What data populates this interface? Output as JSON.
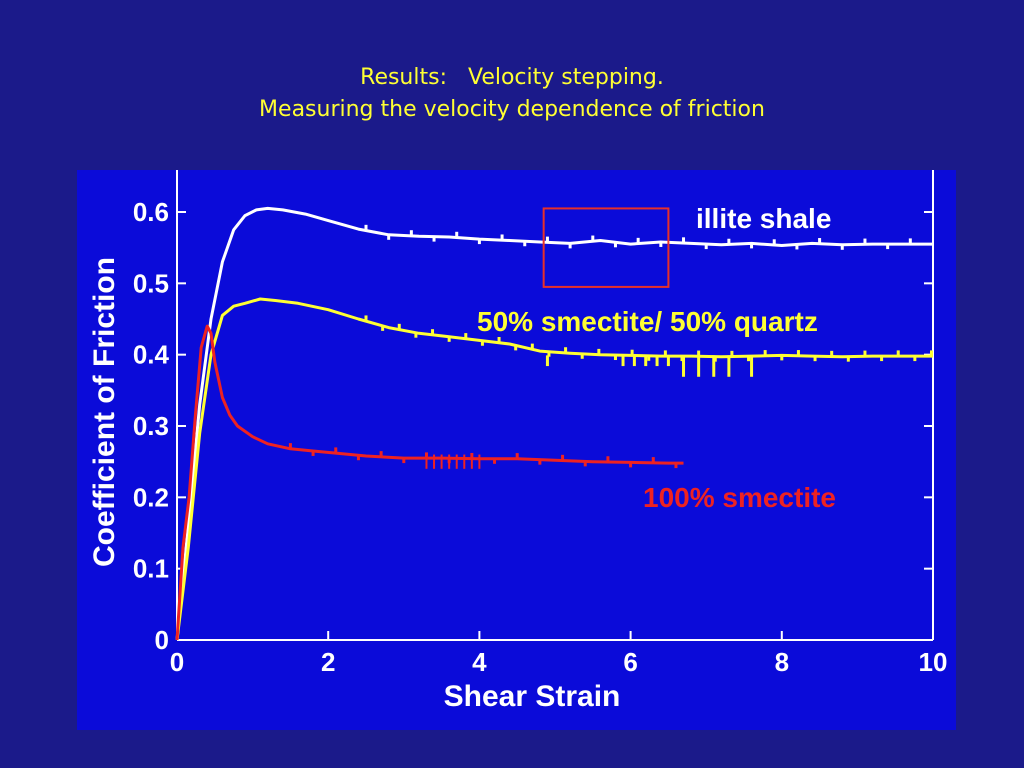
{
  "slide": {
    "title_line1": "Results:   Velocity stepping.",
    "title_line2": "Measuring the velocity dependence of friction"
  },
  "colors": {
    "background": "#1b1a8a",
    "plot_background": "#0b0bd9",
    "title": "#ffff33",
    "axes": "#ffffff",
    "highlight_box": "#e8302a"
  },
  "chart_data": {
    "type": "line",
    "title": "",
    "xlabel": "Shear Strain",
    "ylabel": "Coefficient of Friction",
    "xlim": [
      0,
      10
    ],
    "ylim": [
      0,
      0.65
    ],
    "xticks": [
      0,
      2,
      4,
      6,
      8,
      10
    ],
    "yticks": [
      0,
      0.1,
      0.2,
      0.3,
      0.4,
      0.5,
      0.6
    ],
    "xtick_labels": [
      "0",
      "2",
      "4",
      "6",
      "8",
      "10"
    ],
    "ytick_labels": [
      "0",
      "0.1",
      "0.2",
      "0.3",
      "0.4",
      "0.5",
      "0.6"
    ],
    "grid": false,
    "legend": "inline labels",
    "series": [
      {
        "name": "illite shale",
        "color": "#ffffff",
        "x": [
          0,
          0.15,
          0.3,
          0.45,
          0.6,
          0.75,
          0.9,
          1.05,
          1.2,
          1.4,
          1.7,
          2.0,
          2.4,
          2.8,
          3.2,
          3.6,
          4.0,
          4.4,
          4.8,
          5.2,
          5.6,
          6.0,
          6.4,
          6.8,
          7.2,
          7.6,
          8.0,
          8.4,
          8.8,
          9.2,
          9.6,
          10.0
        ],
        "y": [
          0,
          0.16,
          0.33,
          0.45,
          0.53,
          0.575,
          0.595,
          0.603,
          0.605,
          0.603,
          0.597,
          0.588,
          0.576,
          0.568,
          0.566,
          0.565,
          0.562,
          0.56,
          0.558,
          0.556,
          0.56,
          0.555,
          0.558,
          0.556,
          0.554,
          0.556,
          0.553,
          0.556,
          0.554,
          0.555,
          0.555,
          0.555
        ]
      },
      {
        "name": "50% smectite/ 50% quartz",
        "color": "#ffff33",
        "x": [
          0,
          0.15,
          0.3,
          0.45,
          0.6,
          0.75,
          0.9,
          1.1,
          1.3,
          1.6,
          2.0,
          2.4,
          2.8,
          3.2,
          3.6,
          4.0,
          4.4,
          4.8,
          5.2,
          5.6,
          6.0,
          6.4,
          6.8,
          7.2,
          7.6,
          8.0,
          8.4,
          8.8,
          9.2,
          9.6,
          10.0
        ],
        "y": [
          0,
          0.13,
          0.29,
          0.4,
          0.455,
          0.468,
          0.472,
          0.478,
          0.476,
          0.472,
          0.463,
          0.45,
          0.438,
          0.43,
          0.425,
          0.42,
          0.415,
          0.405,
          0.402,
          0.4,
          0.399,
          0.398,
          0.398,
          0.397,
          0.398,
          0.399,
          0.398,
          0.397,
          0.398,
          0.398,
          0.398
        ]
      },
      {
        "name": "100% smectite",
        "color": "#ee2222",
        "x": [
          0,
          0.08,
          0.16,
          0.24,
          0.32,
          0.4,
          0.45,
          0.5,
          0.6,
          0.7,
          0.8,
          1.0,
          1.2,
          1.5,
          1.8,
          2.1,
          2.5,
          3.0,
          3.5,
          4.0,
          4.5,
          5.0,
          5.5,
          6.0,
          6.5,
          6.7
        ],
        "y": [
          0,
          0.13,
          0.2,
          0.31,
          0.41,
          0.44,
          0.43,
          0.39,
          0.34,
          0.315,
          0.3,
          0.285,
          0.275,
          0.268,
          0.265,
          0.262,
          0.258,
          0.255,
          0.255,
          0.254,
          0.254,
          0.252,
          0.25,
          0.249,
          0.248,
          0.248
        ]
      }
    ],
    "annotations": [
      {
        "type": "box",
        "x0": 4.85,
        "x1": 6.5,
        "y0": 0.495,
        "y1": 0.605,
        "color": "#e8302a"
      }
    ]
  },
  "labels": {
    "illite": "illite shale",
    "mix": "50% smectite/ 50% quartz",
    "smectite": "100% smectite"
  }
}
